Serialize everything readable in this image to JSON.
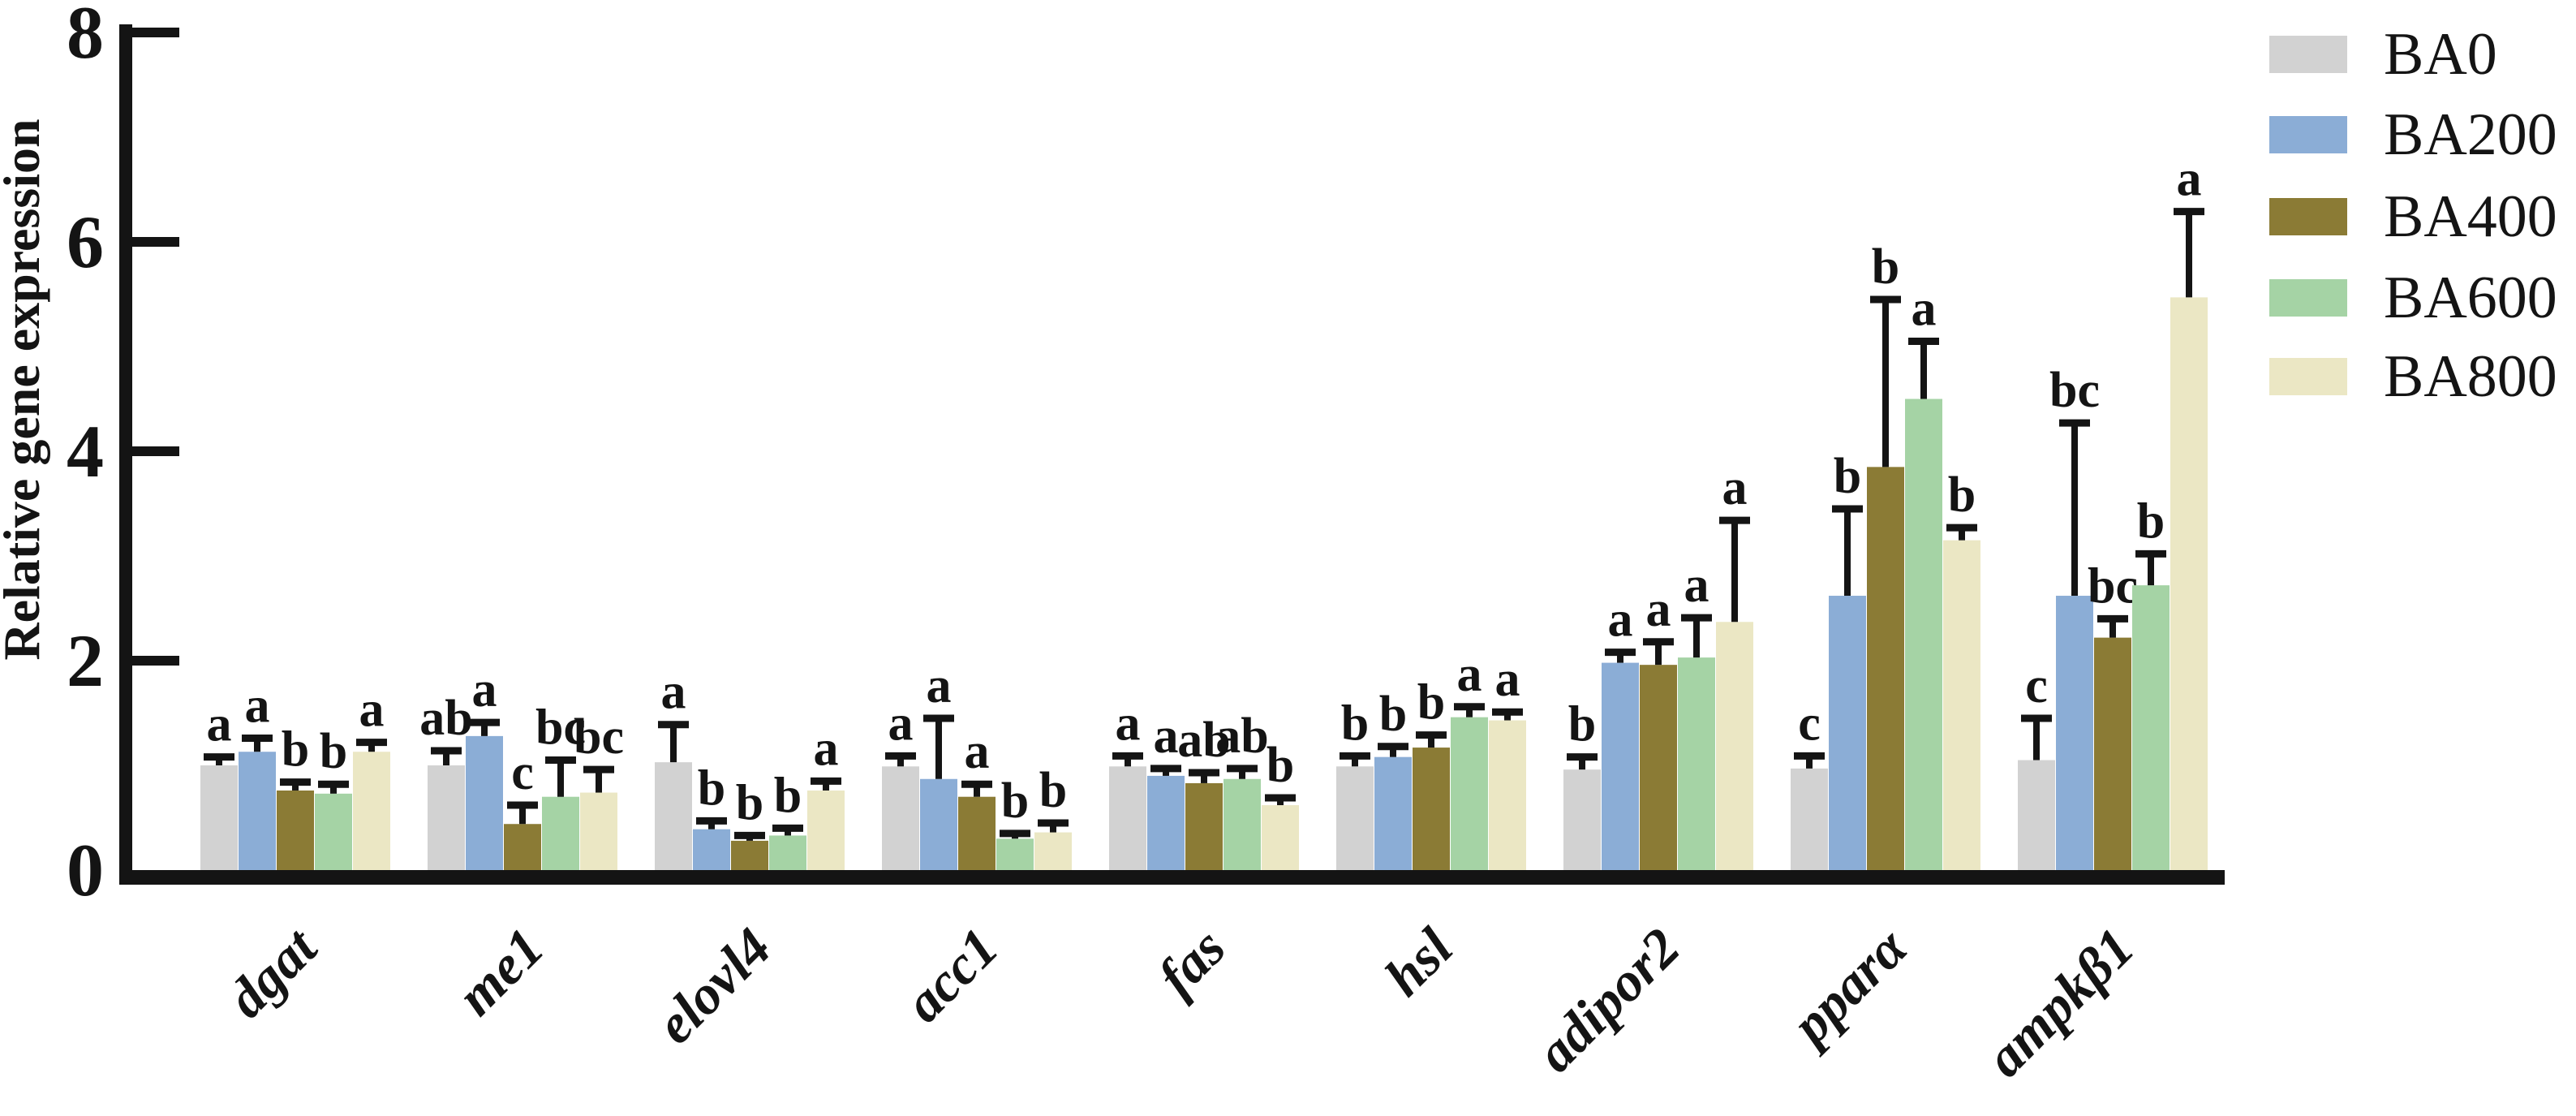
{
  "figure": {
    "background": "#ffffff",
    "axis_color": "#141414"
  },
  "chart_data": {
    "type": "bar",
    "title": "",
    "xlabel": "",
    "ylabel": "Relative gene expression",
    "ylim": [
      0,
      8
    ],
    "yticks": [
      0,
      2,
      4,
      6,
      8
    ],
    "grid": "off",
    "legend_position": "top-right",
    "error_bars": "upper SD with cap",
    "annotation_style": "significance letters above error bars",
    "categories": [
      "dgat",
      "me1",
      "elovl4",
      "acc1",
      "fas",
      "hsl",
      "adipor2",
      "pparα",
      "ampkβ1"
    ],
    "series": [
      {
        "name": "BA0",
        "color": "#d2d2d2",
        "values": [
          1.0,
          1.0,
          1.03,
          0.99,
          0.99,
          0.99,
          0.96,
          0.97,
          1.05
        ],
        "errors": [
          0.08,
          0.14,
          0.36,
          0.1,
          0.1,
          0.1,
          0.12,
          0.12,
          0.4
        ],
        "letters": [
          "a",
          "ab",
          "a",
          "a",
          "a",
          "b",
          "b",
          "c",
          "c"
        ]
      },
      {
        "name": "BA200",
        "color": "#8badd6",
        "values": [
          1.13,
          1.28,
          0.39,
          0.87,
          0.9,
          1.08,
          1.98,
          2.62,
          2.62
        ],
        "errors": [
          0.13,
          0.13,
          0.08,
          0.58,
          0.07,
          0.1,
          0.1,
          0.83,
          1.65
        ],
        "letters": [
          "a",
          "a",
          "b",
          "a",
          "a",
          "b",
          "a",
          "b",
          "bc"
        ]
      },
      {
        "name": "BA400",
        "color": "#8b7b35",
        "values": [
          0.76,
          0.44,
          0.28,
          0.7,
          0.83,
          1.17,
          1.96,
          3.85,
          2.22
        ],
        "errors": [
          0.08,
          0.18,
          0.05,
          0.12,
          0.1,
          0.12,
          0.22,
          1.6,
          0.18
        ],
        "letters": [
          "b",
          "c",
          "b",
          "a",
          "ab",
          "b",
          "a",
          "b",
          "bc"
        ]
      },
      {
        "name": "BA600",
        "color": "#a5d3a5",
        "values": [
          0.73,
          0.7,
          0.33,
          0.3,
          0.87,
          1.46,
          2.03,
          4.5,
          2.72
        ],
        "errors": [
          0.09,
          0.35,
          0.07,
          0.05,
          0.1,
          0.1,
          0.38,
          0.55,
          0.3
        ],
        "letters": [
          "b",
          "bc",
          "b",
          "b",
          "ab",
          "a",
          "a",
          "a",
          "b"
        ]
      },
      {
        "name": "BA800",
        "color": "#ebe7c4",
        "values": [
          1.13,
          0.74,
          0.76,
          0.36,
          0.62,
          1.43,
          2.37,
          3.15,
          5.47
        ],
        "errors": [
          0.09,
          0.22,
          0.09,
          0.09,
          0.07,
          0.08,
          0.97,
          0.12,
          0.82
        ],
        "letters": [
          "a",
          "bc",
          "a",
          "b",
          "b",
          "a",
          "a",
          "b",
          "a"
        ]
      }
    ]
  }
}
